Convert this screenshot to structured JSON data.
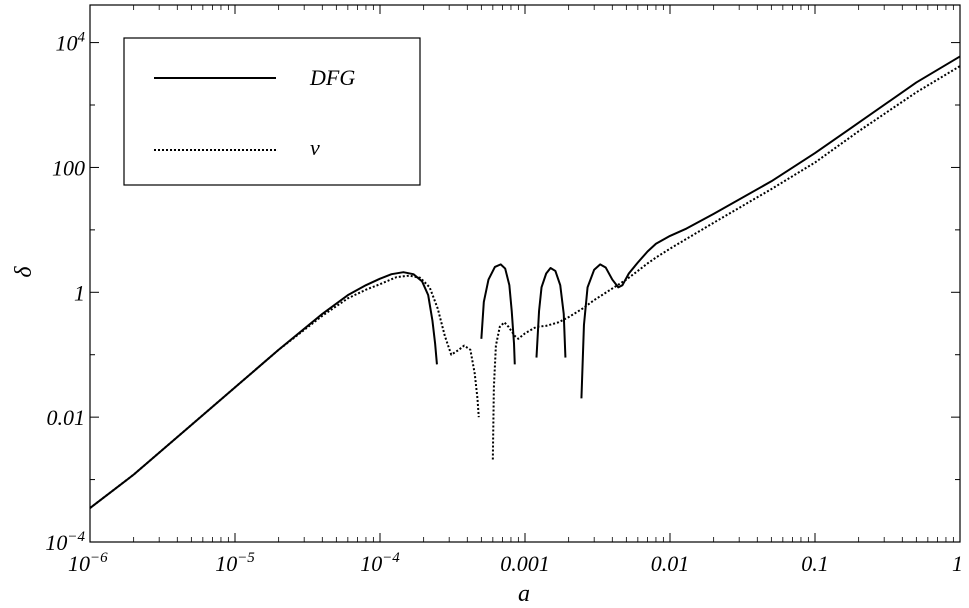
{
  "chart_data": {
    "type": "line",
    "title": "",
    "xlabel": "a",
    "ylabel": "δ",
    "x_scale": "log",
    "y_scale": "log",
    "xlim": [
      1e-06,
      1
    ],
    "ylim": [
      0.0001,
      40000.0
    ],
    "grid": false,
    "legend_position": "top-left",
    "x_ticks": [
      {
        "value": 1e-06,
        "base": "10",
        "exp": "−6"
      },
      {
        "value": 1e-05,
        "base": "10",
        "exp": "−5"
      },
      {
        "value": 0.0001,
        "base": "10",
        "exp": "−4"
      },
      {
        "value": 0.001,
        "text": "0.001"
      },
      {
        "value": 0.01,
        "text": "0.01"
      },
      {
        "value": 0.1,
        "text": "0.1"
      },
      {
        "value": 1,
        "text": "1"
      }
    ],
    "y_ticks": [
      {
        "value": 0.0001,
        "base": "10",
        "exp": "−4"
      },
      {
        "value": 0.01,
        "text": "0.01"
      },
      {
        "value": 1,
        "text": "1"
      },
      {
        "value": 100,
        "text": "100"
      },
      {
        "value": 10000.0,
        "base": "10",
        "exp": "4"
      }
    ],
    "series": [
      {
        "name": "DFG",
        "style": "solid",
        "color": "#000000",
        "segments": [
          [
            [
              1e-06,
              0.00035
            ],
            [
              2e-06,
              0.0012
            ],
            [
              5e-06,
              0.0075
            ],
            [
              1e-05,
              0.03
            ],
            [
              2e-05,
              0.12
            ],
            [
              4e-05,
              0.45
            ],
            [
              6e-05,
              0.9
            ],
            [
              8e-05,
              1.3
            ],
            [
              0.0001,
              1.65
            ],
            [
              0.00012,
              1.95
            ],
            [
              0.000145,
              2.1
            ],
            [
              0.00017,
              1.95
            ],
            [
              0.000195,
              1.5
            ],
            [
              0.000215,
              0.9
            ],
            [
              0.00023,
              0.35
            ],
            [
              0.00024,
              0.15
            ],
            [
              0.000247,
              0.07
            ]
          ],
          [
            [
              0.0005,
              0.18
            ],
            [
              0.00052,
              0.7
            ],
            [
              0.00056,
              1.6
            ],
            [
              0.00062,
              2.55
            ],
            [
              0.00068,
              2.8
            ],
            [
              0.00073,
              2.4
            ],
            [
              0.00078,
              1.3
            ],
            [
              0.00081,
              0.5
            ],
            [
              0.00084,
              0.15
            ],
            [
              0.00085,
              0.07
            ]
          ],
          [
            [
              0.0012,
              0.09
            ],
            [
              0.00125,
              0.5
            ],
            [
              0.0013,
              1.2
            ],
            [
              0.0014,
              2.0
            ],
            [
              0.0015,
              2.45
            ],
            [
              0.00162,
              2.2
            ],
            [
              0.00175,
              1.3
            ],
            [
              0.00185,
              0.45
            ],
            [
              0.0019,
              0.09
            ]
          ],
          [
            [
              0.00245,
              0.02
            ],
            [
              0.00255,
              0.3
            ],
            [
              0.0027,
              1.2
            ],
            [
              0.003,
              2.3
            ],
            [
              0.0033,
              2.8
            ],
            [
              0.0036,
              2.5
            ],
            [
              0.004,
              1.6
            ],
            [
              0.0044,
              1.2
            ],
            [
              0.0047,
              1.3
            ],
            [
              0.0052,
              2.0
            ],
            [
              0.006,
              3.0
            ],
            [
              0.007,
              4.5
            ],
            [
              0.008,
              6.0
            ],
            [
              0.01,
              8.0
            ],
            [
              0.013,
              10.5
            ],
            [
              0.02,
              18
            ],
            [
              0.05,
              60
            ],
            [
              0.1,
              170
            ],
            [
              0.2,
              520
            ],
            [
              0.5,
              2300
            ],
            [
              1,
              6000
            ]
          ]
        ]
      },
      {
        "name": "ν",
        "style": "dotted",
        "color": "#000000",
        "segments": [
          [
            [
              1e-06,
              0.00035
            ],
            [
              2e-06,
              0.0012
            ],
            [
              5e-06,
              0.0075
            ],
            [
              1e-05,
              0.03
            ],
            [
              2e-05,
              0.12
            ],
            [
              4e-05,
              0.42
            ],
            [
              6e-05,
              0.8
            ],
            [
              8e-05,
              1.1
            ],
            [
              0.0001,
              1.35
            ],
            [
              0.00013,
              1.75
            ],
            [
              0.00016,
              1.85
            ],
            [
              0.00019,
              1.7
            ],
            [
              0.00022,
              1.2
            ],
            [
              0.00025,
              0.55
            ],
            [
              0.00028,
              0.2
            ],
            [
              0.00031,
              0.1
            ],
            [
              0.00035,
              0.12
            ],
            [
              0.00038,
              0.14
            ],
            [
              0.00042,
              0.12
            ],
            [
              0.00045,
              0.05
            ],
            [
              0.00047,
              0.02
            ],
            [
              0.00048,
              0.01
            ]
          ],
          [
            [
              0.0006,
              0.0021
            ],
            [
              0.00061,
              0.03
            ],
            [
              0.00063,
              0.14
            ],
            [
              0.00067,
              0.28
            ],
            [
              0.00072,
              0.33
            ],
            [
              0.00077,
              0.28
            ],
            [
              0.00085,
              0.2
            ],
            [
              0.0009,
              0.18
            ],
            [
              0.001,
              0.22
            ],
            [
              0.0012,
              0.28
            ],
            [
              0.0014,
              0.29
            ],
            [
              0.0017,
              0.33
            ],
            [
              0.002,
              0.4
            ],
            [
              0.0025,
              0.55
            ],
            [
              0.003,
              0.75
            ],
            [
              0.004,
              1.15
            ],
            [
              0.005,
              1.6
            ],
            [
              0.006,
              2.2
            ],
            [
              0.007,
              2.9
            ],
            [
              0.008,
              3.6
            ],
            [
              0.01,
              5.0
            ],
            [
              0.02,
              13
            ],
            [
              0.05,
              45
            ],
            [
              0.1,
              120
            ],
            [
              0.2,
              380
            ],
            [
              0.5,
              1600
            ],
            [
              1,
              4200
            ]
          ]
        ]
      }
    ]
  }
}
